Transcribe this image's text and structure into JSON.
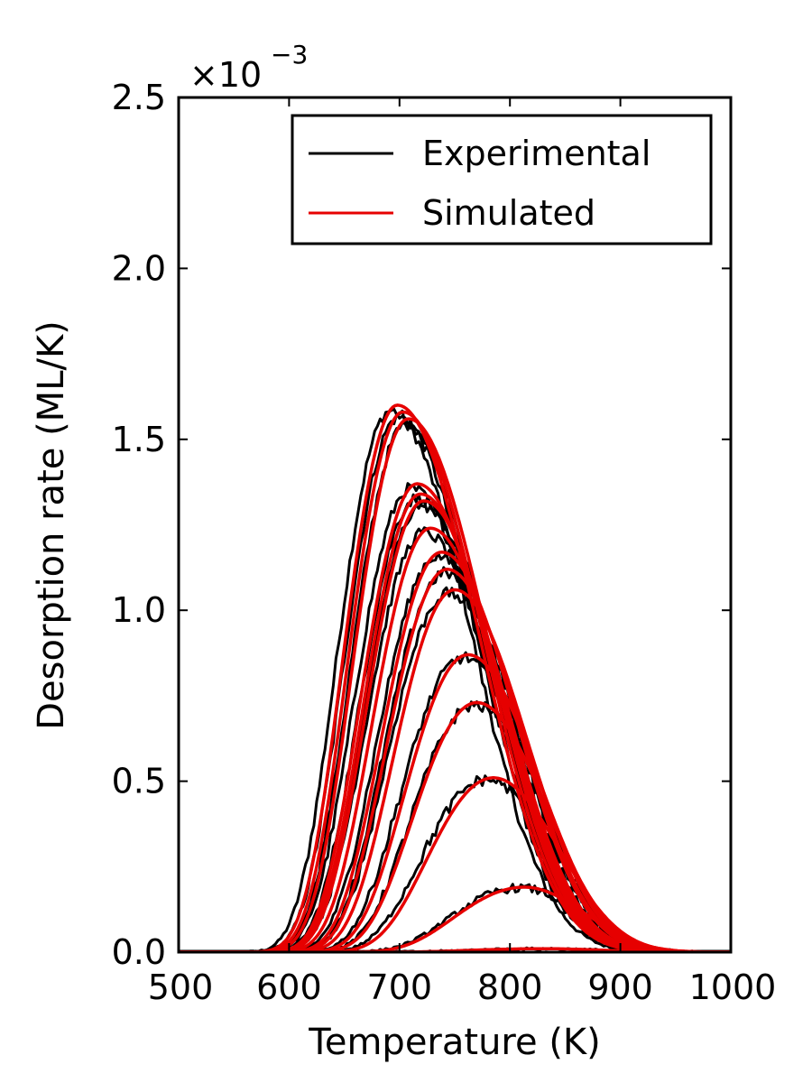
{
  "chart_data": {
    "type": "line",
    "xlabel": "Temperature (K)",
    "ylabel": "Desorption rate (ML/K)",
    "scale_factor": {
      "base": "×10",
      "exponent": "−3"
    },
    "xlim": [
      500,
      1000
    ],
    "ylim": [
      0,
      2.5
    ],
    "x_ticks": [
      500,
      600,
      700,
      800,
      900,
      1000
    ],
    "x_tick_labels": [
      "500",
      "600",
      "700",
      "800",
      "900",
      "1000"
    ],
    "y_ticks": [
      0,
      0.5,
      1.0,
      1.5,
      2.0,
      2.5
    ],
    "y_tick_labels": [
      "0.0",
      "0.5",
      "1.0",
      "1.5",
      "2.0",
      "2.5"
    ],
    "grid": false,
    "legend": {
      "position": "top-right",
      "entries": [
        {
          "label": "Experimental",
          "color": "#000000"
        },
        {
          "label": "Simulated",
          "color": "#e60000"
        }
      ]
    },
    "series_color": {
      "experimental": "#000000",
      "simulated": "#e60000"
    },
    "peaks": [
      {
        "peak_T": 698,
        "peak_rate": 1.6
      },
      {
        "peak_T": 703,
        "peak_rate": 1.58
      },
      {
        "peak_T": 708,
        "peak_rate": 1.56
      },
      {
        "peak_T": 716,
        "peak_rate": 1.37
      },
      {
        "peak_T": 719,
        "peak_rate": 1.34
      },
      {
        "peak_T": 722,
        "peak_rate": 1.32
      },
      {
        "peak_T": 728,
        "peak_rate": 1.24
      },
      {
        "peak_T": 738,
        "peak_rate": 1.17
      },
      {
        "peak_T": 743,
        "peak_rate": 1.12
      },
      {
        "peak_T": 750,
        "peak_rate": 1.06
      },
      {
        "peak_T": 762,
        "peak_rate": 0.87
      },
      {
        "peak_T": 770,
        "peak_rate": 0.73
      },
      {
        "peak_T": 785,
        "peak_rate": 0.51
      },
      {
        "peak_T": 813,
        "peak_rate": 0.19
      },
      {
        "peak_T": 830,
        "peak_rate": 0.01
      }
    ]
  }
}
